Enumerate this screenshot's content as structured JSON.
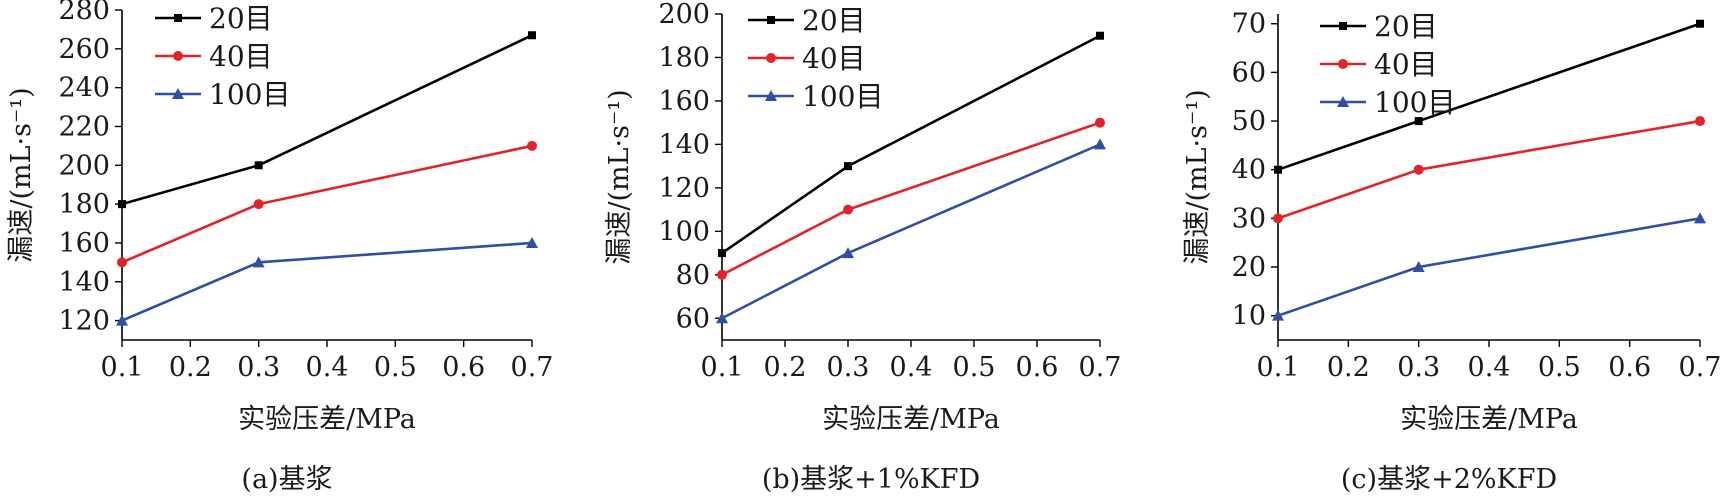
{
  "chart_data": [
    {
      "type": "line",
      "caption": "(a)基浆",
      "xlabel": "实验压差/MPa",
      "ylabel": "漏速/(mL·s⁻¹)",
      "x_ticks": [
        "0.1",
        "0.2",
        "0.3",
        "0.4",
        "0.5",
        "0.6",
        "0.7"
      ],
      "y_ticks": [
        "120",
        "140",
        "160",
        "180",
        "200",
        "220",
        "240",
        "260",
        "280"
      ],
      "xlim": [
        0.1,
        0.7
      ],
      "ylim": [
        110,
        280
      ],
      "legend_position": "top-left",
      "x": [
        0.1,
        0.3,
        0.7
      ],
      "series": [
        {
          "name": "20目",
          "values": [
            180,
            200,
            267
          ],
          "color": "#000000",
          "marker": "square"
        },
        {
          "name": "40目",
          "values": [
            150,
            180,
            210
          ],
          "color": "#e0242a",
          "marker": "circle"
        },
        {
          "name": "100目",
          "values": [
            120,
            150,
            160
          ],
          "color": "#2e4fa3",
          "marker": "triangle"
        }
      ]
    },
    {
      "type": "line",
      "caption": "(b)基浆+1%KFD",
      "xlabel": "实验压差/MPa",
      "ylabel": "漏速/(mL·s⁻¹)",
      "x_ticks": [
        "0.1",
        "0.2",
        "0.3",
        "0.4",
        "0.5",
        "0.6",
        "0.7"
      ],
      "y_ticks": [
        "60",
        "80",
        "100",
        "120",
        "140",
        "160",
        "180",
        "200"
      ],
      "xlim": [
        0.1,
        0.7
      ],
      "ylim": [
        50,
        200
      ],
      "legend_position": "top-left",
      "x": [
        0.1,
        0.3,
        0.7
      ],
      "series": [
        {
          "name": "20目",
          "values": [
            90,
            130,
            190
          ],
          "color": "#000000",
          "marker": "square"
        },
        {
          "name": "40目",
          "values": [
            80,
            110,
            150
          ],
          "color": "#e0242a",
          "marker": "circle"
        },
        {
          "name": "100目",
          "values": [
            60,
            90,
            140
          ],
          "color": "#2e4fa3",
          "marker": "triangle"
        }
      ]
    },
    {
      "type": "line",
      "caption": "(c)基浆+2%KFD",
      "xlabel": "实验压差/MPa",
      "ylabel": "漏速/(mL·s⁻¹)",
      "x_ticks": [
        "0.1",
        "0.2",
        "0.3",
        "0.4",
        "0.5",
        "0.6",
        "0.7"
      ],
      "y_ticks": [
        "10",
        "20",
        "30",
        "40",
        "50",
        "60",
        "70"
      ],
      "xlim": [
        0.1,
        0.7
      ],
      "ylim": [
        5,
        72
      ],
      "legend_position": "top-left",
      "x": [
        0.1,
        0.3,
        0.7
      ],
      "series": [
        {
          "name": "20目",
          "values": [
            40,
            50,
            70
          ],
          "color": "#000000",
          "marker": "square"
        },
        {
          "name": "40目",
          "values": [
            30,
            40,
            50
          ],
          "color": "#e0242a",
          "marker": "circle"
        },
        {
          "name": "100目",
          "values": [
            10,
            20,
            30
          ],
          "color": "#2e4fa3",
          "marker": "triangle"
        }
      ]
    }
  ]
}
